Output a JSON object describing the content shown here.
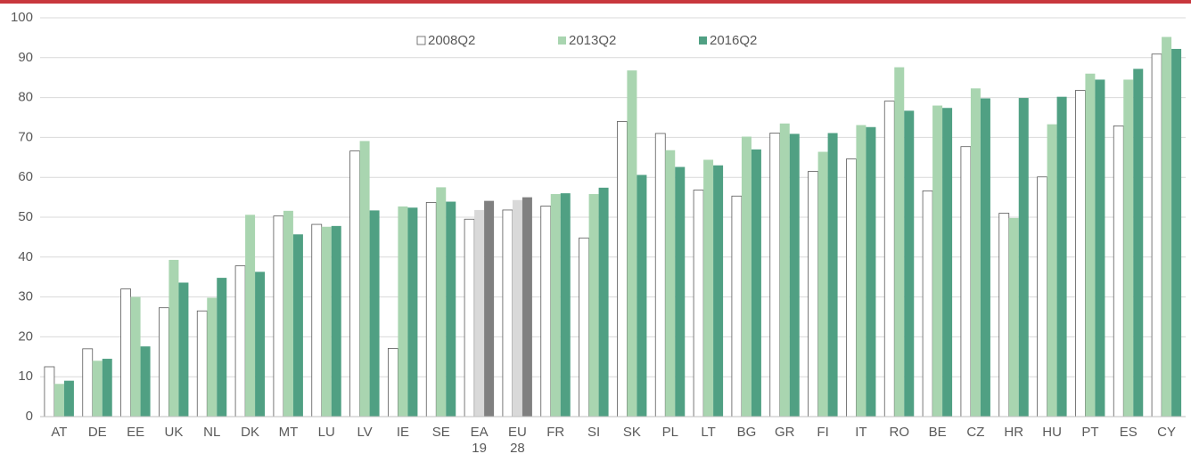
{
  "chart_data": {
    "type": "bar",
    "categories": [
      "AT",
      "DE",
      "EE",
      "UK",
      "NL",
      "DK",
      "MT",
      "LU",
      "LV",
      "IE",
      "SE",
      "EA\n19",
      "EU\n28",
      "FR",
      "SI",
      "SK",
      "PL",
      "LT",
      "BG",
      "GR",
      "FI",
      "IT",
      "RO",
      "BE",
      "CZ",
      "HR",
      "HU",
      "PT",
      "ES",
      "CY"
    ],
    "series": [
      {
        "name": "2008Q2",
        "color": "#ffffff",
        "highlight_color": "#ffffff",
        "values": [
          12.5,
          17,
          32,
          27.3,
          26.5,
          37.8,
          50.3,
          48.2,
          66.6,
          17.1,
          53.7,
          49.5,
          51.8,
          52.8,
          44.8,
          74,
          71,
          56.8,
          55.3,
          71.1,
          61.5,
          64.6,
          79.1,
          56.6,
          67.7,
          51,
          60.1,
          81.8,
          72.9,
          90.9
        ]
      },
      {
        "name": "2013Q2",
        "color": "#a9d5b0",
        "highlight_color": "#d9d9d9",
        "values": [
          8.2,
          14,
          30,
          39.3,
          29.8,
          50.6,
          51.6,
          47.6,
          69.1,
          52.7,
          57.5,
          51.8,
          54.3,
          55.8,
          55.8,
          86.8,
          66.8,
          64.4,
          70.2,
          73.5,
          66.4,
          73.1,
          87.6,
          78,
          82.3,
          49.8,
          73.3,
          86,
          84.5,
          95.2
        ]
      },
      {
        "name": "2016Q2",
        "color": "#50a083",
        "highlight_color": "#808080",
        "values": [
          9,
          14.5,
          17.6,
          33.6,
          34.8,
          36.3,
          45.7,
          47.8,
          51.7,
          52.4,
          53.9,
          54.1,
          55,
          56,
          57.4,
          60.6,
          62.6,
          63,
          67,
          70.9,
          71.1,
          72.6,
          76.7,
          77.4,
          79.8,
          79.9,
          80.2,
          84.5,
          87.2,
          92.2
        ]
      }
    ],
    "highlight_indices": [
      11,
      12
    ],
    "ylim": [
      0,
      100
    ],
    "yticks": [
      0,
      10,
      20,
      30,
      40,
      50,
      60,
      70,
      80,
      90,
      100
    ],
    "grid": true,
    "legend": "top"
  }
}
